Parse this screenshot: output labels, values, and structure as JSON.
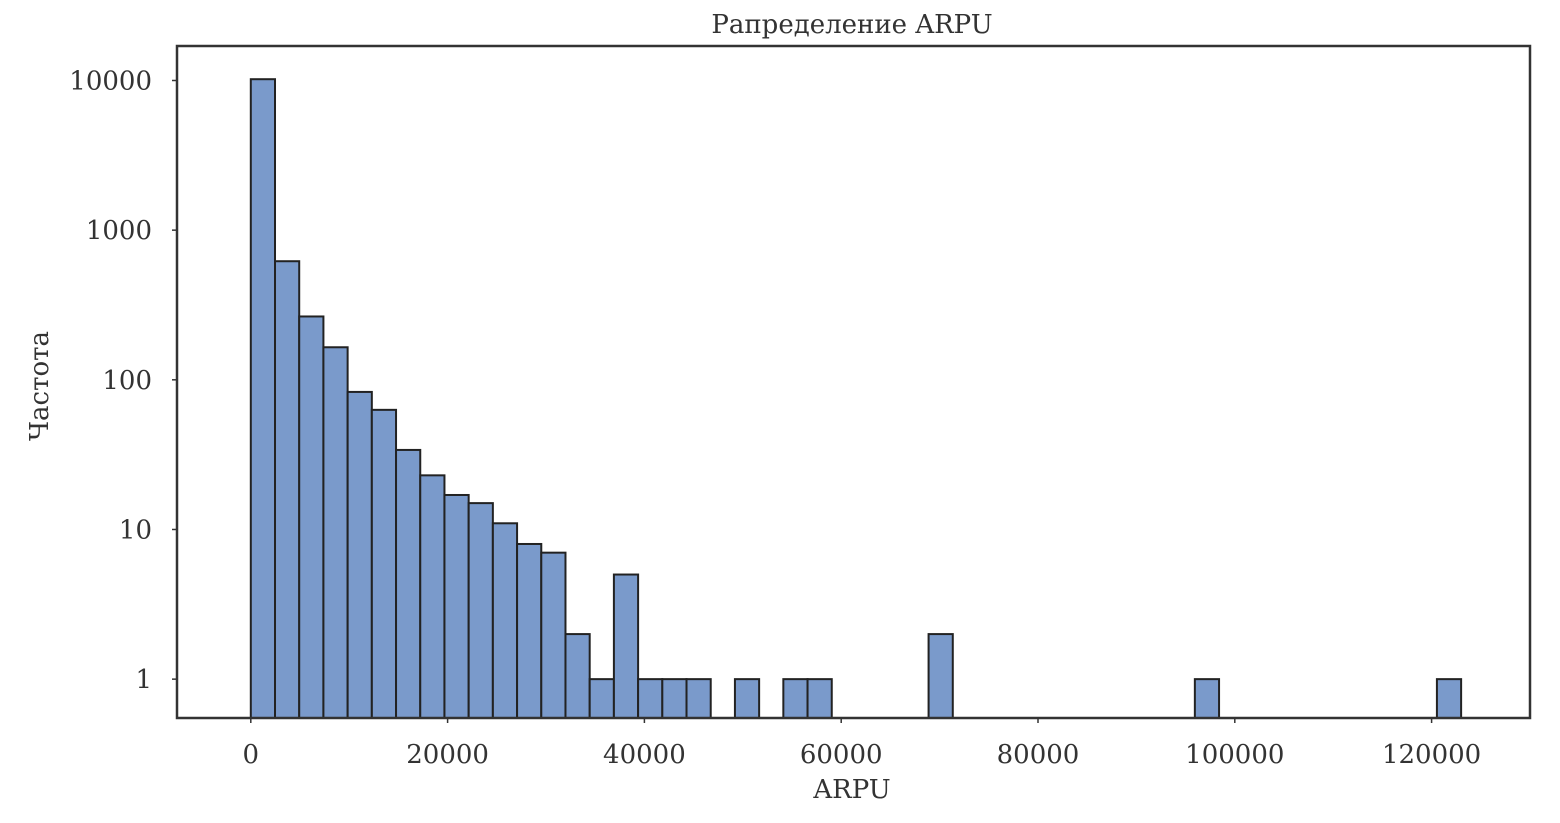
{
  "chart_data": {
    "type": "bar",
    "title": "Рапределение ARPU",
    "xlabel": "ARPU",
    "ylabel": "Частота",
    "yscale": "log",
    "grid": false,
    "xlim": [
      -7500,
      130000
    ],
    "ylim": [
      0.55,
      17000
    ],
    "bin_width": 2460,
    "bins": [
      {
        "x": 0,
        "count": 10200
      },
      {
        "x": 2460,
        "count": 620
      },
      {
        "x": 4920,
        "count": 265
      },
      {
        "x": 7380,
        "count": 165
      },
      {
        "x": 9840,
        "count": 83
      },
      {
        "x": 12300,
        "count": 63
      },
      {
        "x": 14760,
        "count": 34
      },
      {
        "x": 17220,
        "count": 23
      },
      {
        "x": 19680,
        "count": 17
      },
      {
        "x": 22140,
        "count": 15
      },
      {
        "x": 24600,
        "count": 11
      },
      {
        "x": 27060,
        "count": 8
      },
      {
        "x": 29520,
        "count": 7
      },
      {
        "x": 31980,
        "count": 2
      },
      {
        "x": 34440,
        "count": 1
      },
      {
        "x": 36900,
        "count": 5
      },
      {
        "x": 39360,
        "count": 1
      },
      {
        "x": 41820,
        "count": 1
      },
      {
        "x": 44280,
        "count": 1
      },
      {
        "x": 49200,
        "count": 1
      },
      {
        "x": 54120,
        "count": 1
      },
      {
        "x": 56580,
        "count": 1
      },
      {
        "x": 68880,
        "count": 2
      },
      {
        "x": 95940,
        "count": 1
      },
      {
        "x": 120540,
        "count": 1
      }
    ],
    "x_ticks": [
      0,
      20000,
      40000,
      60000,
      80000,
      100000,
      120000
    ],
    "x_tick_labels": [
      "0",
      "20000",
      "40000",
      "60000",
      "80000",
      "100000",
      "120000"
    ],
    "y_ticks": [
      1,
      10,
      100,
      1000,
      10000
    ],
    "y_tick_labels": [
      "1",
      "10",
      "100",
      "1000",
      "10000"
    ],
    "colors": {
      "bar_fill": "#7a9acb",
      "bar_edge": "#222222",
      "text": "#333333"
    }
  }
}
